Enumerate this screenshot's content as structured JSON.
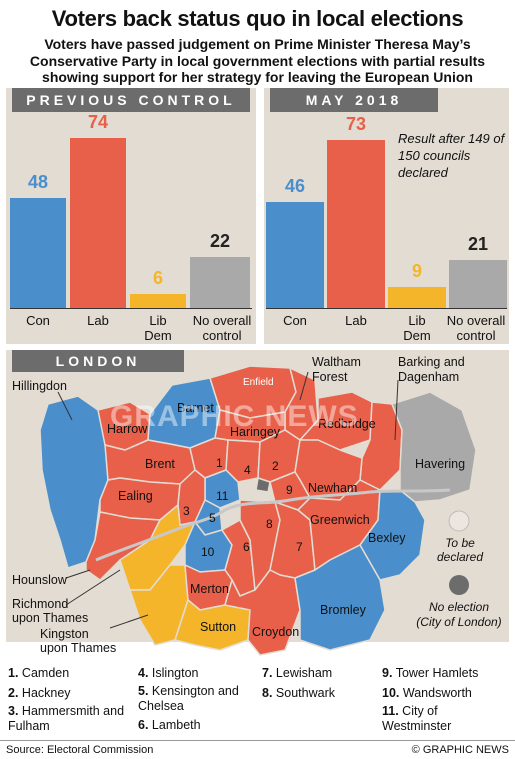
{
  "title": "Voters back status quo in local elections",
  "subtitle": "Voters have passed judgement on Prime Minister Theresa May’s Conservative Party in local government elections with partial results showing support for her strategy for leaving the European Union",
  "colors": {
    "con": "#4a8fcc",
    "lab": "#e8604a",
    "libdem": "#f5b52a",
    "noc": "#a9a9a9",
    "panel": "#e3dcd3",
    "header": "#6c6c6c"
  },
  "chart_data": [
    {
      "type": "bar",
      "title": "PREVIOUS CONTROL",
      "categories": [
        "Con",
        "Lab",
        "Lib Dem",
        "No overall control"
      ],
      "values": [
        48,
        74,
        6,
        22
      ],
      "ylim": [
        0,
        80
      ]
    },
    {
      "type": "bar",
      "title": "MAY 2018",
      "categories": [
        "Con",
        "Lab",
        "Lib Dem",
        "No overall control"
      ],
      "values": [
        46,
        73,
        9,
        21
      ],
      "ylim": [
        0,
        80
      ],
      "note": "Result after 149 of 150 councils declared"
    }
  ],
  "labels": {
    "prev": {
      "con": "Con",
      "lab": "Lab",
      "libdem1": "Lib",
      "libdem2": "Dem",
      "noc1": "No overall",
      "noc2": "control"
    },
    "may": {
      "con": "Con",
      "lab": "Lab",
      "libdem1": "Lib",
      "libdem2": "Dem",
      "noc1": "No overall",
      "noc2": "control"
    }
  },
  "map": {
    "header": "LONDON",
    "boroughs": {
      "hillingdon": "Hillingdon",
      "harrow": "Harrow",
      "barnet": "Barnet",
      "enfield": "Enfield",
      "waltham": "Waltham Forest",
      "waltham1": "Waltham",
      "waltham2": "Forest",
      "barking1": "Barking and",
      "barking2": "Dagenham",
      "haringey": "Haringey",
      "redbridge": "Redbridge",
      "brent": "Brent",
      "havering": "Havering",
      "ealing": "Ealing",
      "newham": "Newham",
      "greenwich": "Greenwich",
      "bexley": "Bexley",
      "hounslow": "Hounslow",
      "richmond1": "Richmond",
      "richmond2": "upon Thames",
      "kingston1": "Kingston",
      "kingston2": "upon Thames",
      "merton": "Merton",
      "sutton": "Sutton",
      "croydon": "Croydon",
      "bromley": "Bromley"
    },
    "numbers": [
      "1",
      "2",
      "3",
      "4",
      "5",
      "6",
      "7",
      "8",
      "9",
      "10",
      "11"
    ],
    "legend": {
      "tbd1": "To be",
      "tbd2": "declared",
      "noel1": "No election",
      "noel2": "(City of London)"
    }
  },
  "key": [
    {
      "n": "1.",
      "name": "Camden"
    },
    {
      "n": "2.",
      "name": "Hackney"
    },
    {
      "n": "3.",
      "name": "Hammersmith and Fulham"
    },
    {
      "n": "4.",
      "name": "Islington"
    },
    {
      "n": "5.",
      "name": "Kensington and Chelsea"
    },
    {
      "n": "6.",
      "name": "Lambeth"
    },
    {
      "n": "7.",
      "name": "Lewisham"
    },
    {
      "n": "8.",
      "name": "Southwark"
    },
    {
      "n": "9.",
      "name": "Tower Hamlets"
    },
    {
      "n": "10.",
      "name": "Wandsworth"
    },
    {
      "n": "11.",
      "name": "City of Westminster"
    }
  ],
  "footer": {
    "source": "Source: Electoral Commission",
    "credit": "© GRAPHIC NEWS"
  },
  "watermark": "GRAPHIC NEWS"
}
